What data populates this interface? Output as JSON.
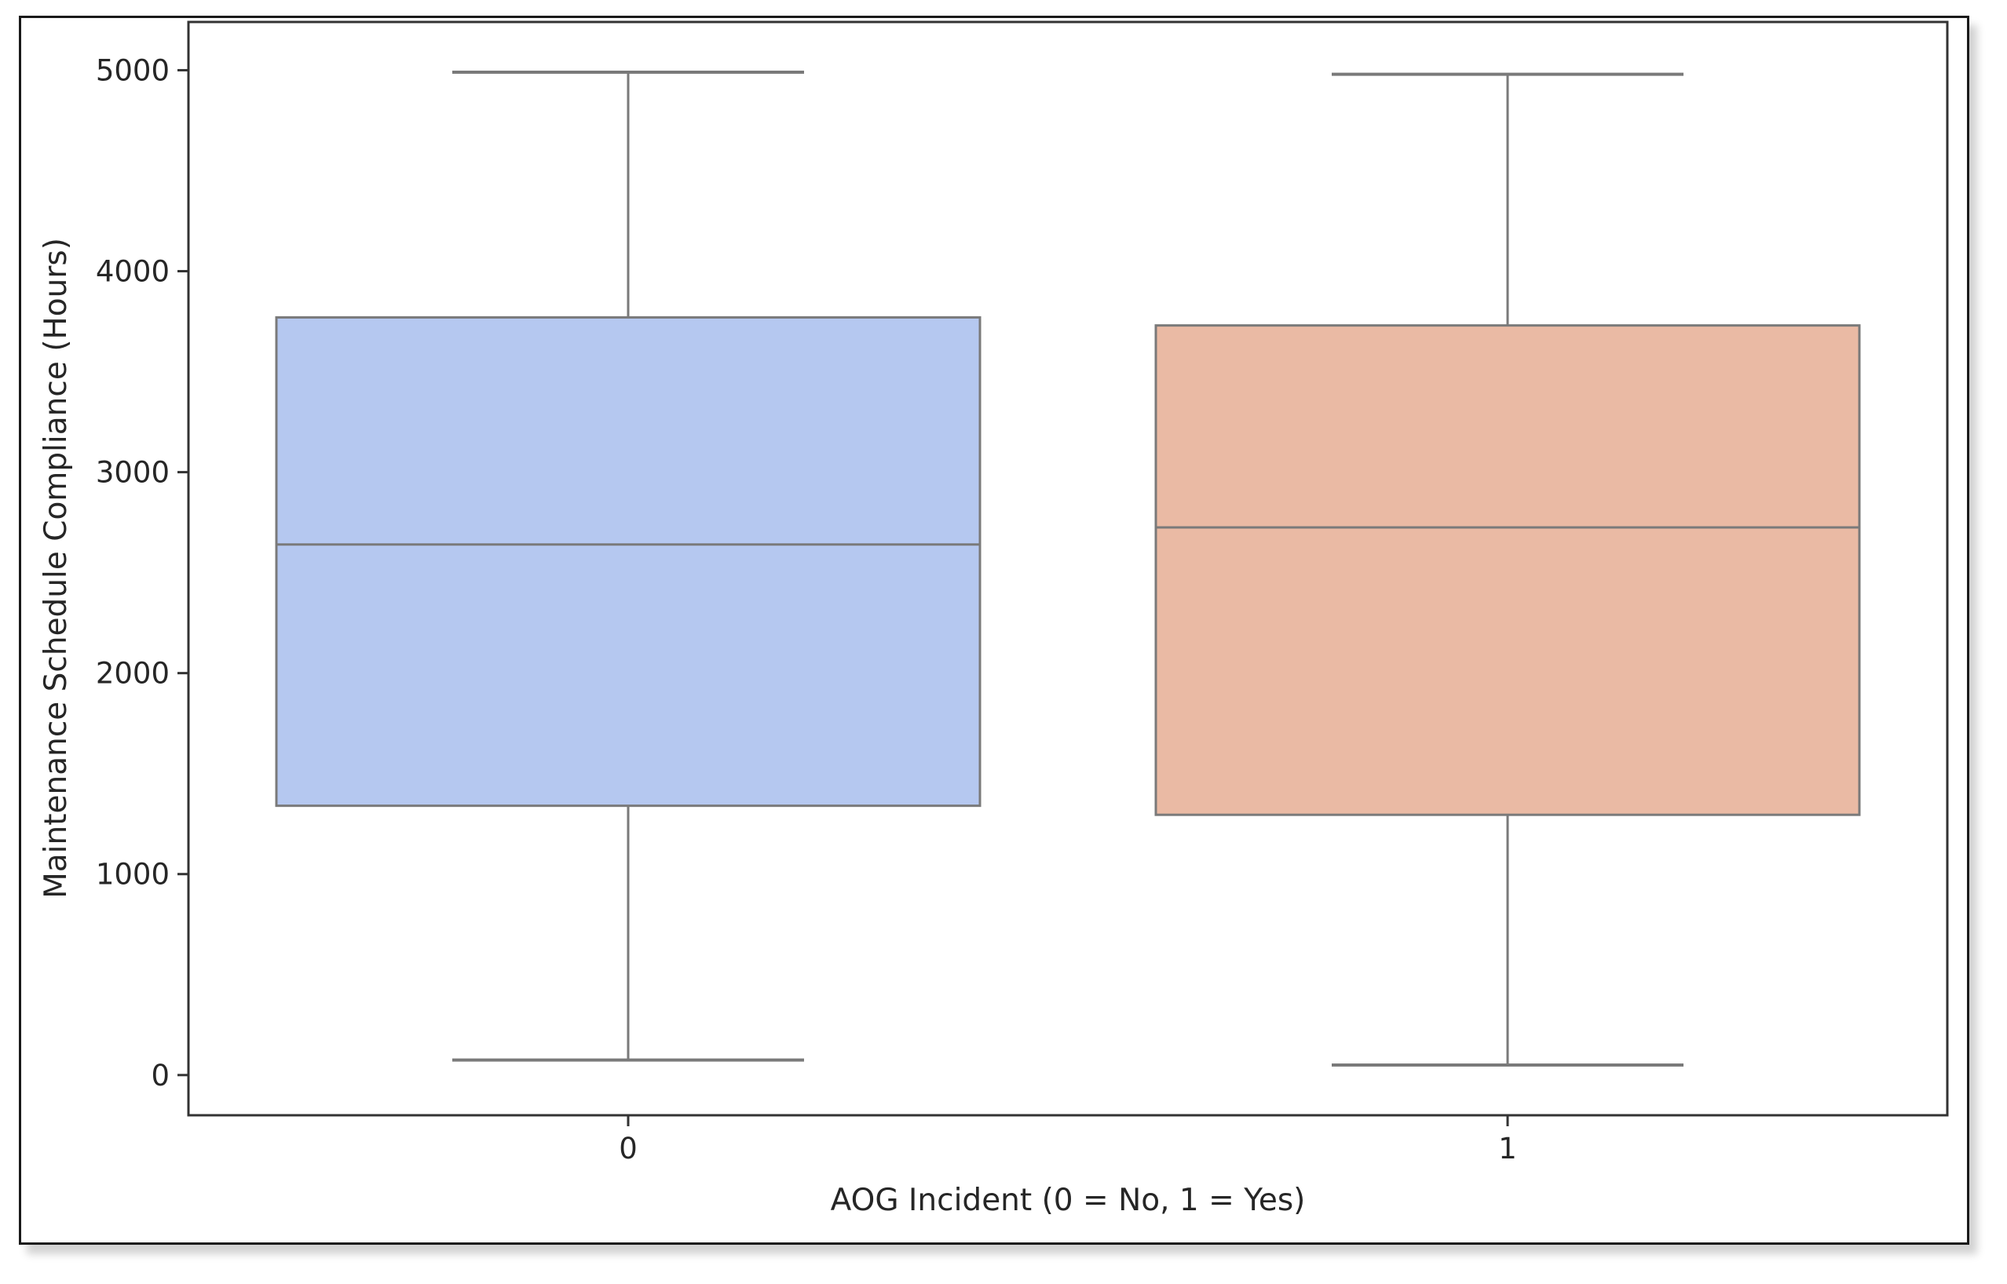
{
  "chart_data": {
    "type": "box",
    "xlabel": "AOG Incident (0 = No, 1 = Yes)",
    "ylabel": "Maintenance Schedule Compliance (Hours)",
    "ylim": [
      -200,
      5240
    ],
    "y_ticks": [
      0,
      1000,
      2000,
      3000,
      4000,
      5000
    ],
    "grid": false,
    "categories": [
      "0",
      "1"
    ],
    "boxes": [
      {
        "category": "0",
        "whisker_low": 75,
        "q1": 1340,
        "median": 2640,
        "q3": 3770,
        "whisker_high": 4990,
        "color": "#b5c8f0"
      },
      {
        "category": "1",
        "whisker_low": 50,
        "q1": 1295,
        "median": 2725,
        "q3": 3730,
        "whisker_high": 4980,
        "color": "#eabaa4"
      }
    ]
  }
}
